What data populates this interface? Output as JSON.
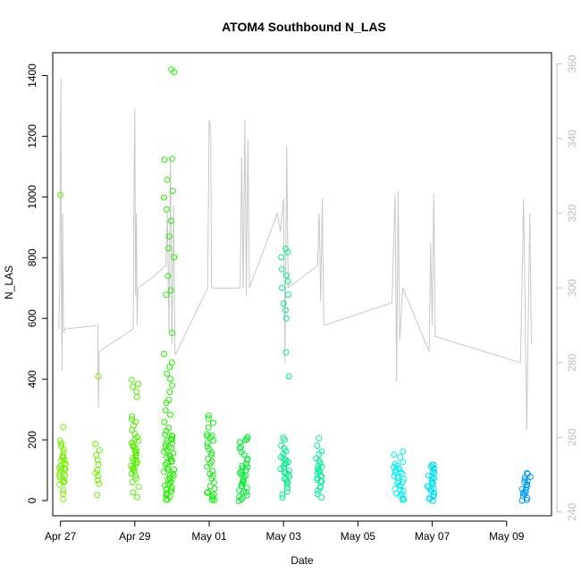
{
  "chart_data": {
    "type": "scatter",
    "title": "ATOM4 Southbound N_LAS",
    "xlabel": "Date",
    "ylabel": "N_LAS",
    "x_axis": {
      "type": "date",
      "range": [
        "2024-04-26T19:00",
        "2024-05-10T05:00"
      ],
      "ticks": [
        "2024-04-27",
        "2024-04-29",
        "2024-05-01",
        "2024-05-03",
        "2024-05-05",
        "2024-05-07",
        "2024-05-09"
      ],
      "tick_labels": [
        "Apr 27",
        "Apr 29",
        "May 01",
        "May 03",
        "May 05",
        "May 07",
        "May 09"
      ]
    },
    "y_axis": {
      "range": [
        -50,
        1475
      ],
      "ticks": [
        0,
        200,
        400,
        600,
        800,
        1000,
        1200,
        1400
      ]
    },
    "y2_axis": {
      "range": [
        239,
        363
      ],
      "ticks": [
        240,
        260,
        280,
        300,
        320,
        340,
        360
      ],
      "color": "#bebebe"
    },
    "grid": false,
    "legend": "none",
    "point_clusters": [
      {
        "center": "2024-04-27T01:00",
        "spread_hours": 2.5,
        "color": "#77ee00",
        "y": [
          5,
          20,
          32,
          50,
          58,
          62,
          65,
          70,
          75,
          80,
          85,
          90,
          95,
          100,
          105,
          108,
          110,
          115,
          120,
          125,
          130,
          135,
          140,
          145,
          150,
          160,
          170,
          180,
          185,
          190,
          200,
          245,
          1008
        ]
      },
      {
        "center": "2024-04-28T00:00",
        "spread_hours": 1.5,
        "color": "#6dee00",
        "y": [
          20,
          55,
          65,
          80,
          90,
          100,
          120,
          130,
          150,
          165,
          185,
          410
        ]
      },
      {
        "center": "2024-04-29T00:00",
        "spread_hours": 2.5,
        "color": "#55ee00",
        "y": [
          10,
          25,
          45,
          60,
          70,
          80,
          85,
          90,
          95,
          100,
          105,
          110,
          115,
          120,
          125,
          130,
          135,
          140,
          145,
          150,
          155,
          160,
          165,
          170,
          175,
          180,
          185,
          190,
          195,
          200,
          210,
          220,
          230,
          250,
          260,
          270,
          280,
          340,
          360,
          375,
          385,
          395
        ]
      },
      {
        "center": "2024-04-29T22:00",
        "spread_hours": 3.5,
        "color": "#22ee00",
        "y": [
          0,
          5,
          10,
          15,
          20,
          25,
          30,
          35,
          40,
          45,
          50,
          55,
          60,
          65,
          70,
          75,
          80,
          85,
          90,
          95,
          100,
          105,
          110,
          115,
          120,
          125,
          130,
          135,
          140,
          145,
          150,
          155,
          160,
          165,
          170,
          175,
          180,
          185,
          190,
          195,
          200,
          205,
          210,
          215,
          220,
          230,
          240,
          260,
          280,
          300,
          320,
          330,
          360,
          380,
          400,
          420,
          440,
          455,
          480,
          550,
          680,
          690,
          740,
          800,
          830,
          870,
          920,
          960,
          1000,
          1020,
          1060,
          1120,
          1125,
          1410,
          1418
        ]
      },
      {
        "center": "2024-05-01T01:00",
        "spread_hours": 2.5,
        "color": "#11ee11",
        "y": [
          0,
          5,
          10,
          15,
          20,
          25,
          30,
          40,
          50,
          60,
          70,
          80,
          90,
          100,
          110,
          120,
          130,
          140,
          150,
          160,
          170,
          180,
          190,
          200,
          205,
          210,
          215,
          220,
          240,
          255,
          270,
          278
        ]
      },
      {
        "center": "2024-05-01T22:00",
        "spread_hours": 3,
        "color": "#00ee33",
        "y": [
          0,
          5,
          10,
          15,
          20,
          25,
          30,
          35,
          40,
          45,
          50,
          55,
          60,
          65,
          70,
          75,
          80,
          85,
          90,
          95,
          100,
          105,
          110,
          115,
          120,
          130,
          140,
          150,
          160,
          170,
          180,
          190,
          195,
          200,
          205,
          210
        ]
      },
      {
        "center": "2024-05-03T01:00",
        "spread_hours": 3,
        "color": "#00ee88",
        "y": [
          10,
          20,
          30,
          40,
          50,
          60,
          65,
          70,
          75,
          80,
          85,
          90,
          95,
          100,
          105,
          110,
          115,
          120,
          125,
          130,
          135,
          140,
          145,
          150,
          160,
          170,
          180,
          200,
          205,
          410,
          490,
          600,
          630,
          650,
          680,
          700,
          720,
          740,
          760,
          800,
          820,
          830
        ]
      },
      {
        "center": "2024-05-03T23:00",
        "spread_hours": 2,
        "color": "#00ee99",
        "y": [
          10,
          20,
          30,
          40,
          50,
          60,
          65,
          70,
          75,
          80,
          85,
          90,
          95,
          100,
          105,
          110,
          115,
          120,
          130,
          140,
          150,
          160,
          180,
          205
        ]
      },
      {
        "center": "2024-05-06T02:00",
        "spread_hours": 3.5,
        "color": "#00eeee",
        "y": [
          0,
          5,
          10,
          15,
          20,
          25,
          30,
          35,
          40,
          45,
          50,
          55,
          60,
          65,
          70,
          75,
          80,
          85,
          90,
          95,
          100,
          105,
          110,
          115,
          120,
          130,
          140,
          150,
          160
        ]
      },
      {
        "center": "2024-05-06T23:00",
        "spread_hours": 2.5,
        "color": "#00ddee",
        "y": [
          0,
          5,
          10,
          15,
          20,
          25,
          30,
          35,
          40,
          45,
          50,
          55,
          60,
          65,
          70,
          75,
          80,
          85,
          90,
          95,
          100,
          105,
          110,
          115,
          120
        ]
      },
      {
        "center": "2024-05-09T13:00",
        "spread_hours": 3,
        "color": "#0099ee",
        "y": [
          0,
          5,
          10,
          15,
          20,
          25,
          30,
          35,
          40,
          45,
          50,
          55,
          60,
          65,
          70,
          75,
          80,
          85,
          90
        ]
      }
    ],
    "secondary_line": {
      "axis": "y2",
      "color": "#c8c8c8",
      "points": [
        [
          "2024-04-26T23:00",
          289
        ],
        [
          "2024-04-26T23:30",
          300
        ],
        [
          "2024-04-27T00:00",
          340
        ],
        [
          "2024-04-27T00:20",
          356
        ],
        [
          "2024-04-27T00:40",
          296
        ],
        [
          "2024-04-27T01:00",
          278
        ],
        [
          "2024-04-27T01:20",
          320
        ],
        [
          "2024-04-27T02:00",
          288
        ],
        [
          "2024-04-27T03:00",
          289
        ],
        [
          "2024-04-28T00:00",
          290
        ],
        [
          "2024-04-28T00:30",
          268
        ],
        [
          "2024-04-28T01:00",
          283
        ],
        [
          "2024-04-28T23:00",
          289
        ],
        [
          "2024-04-28T23:30",
          330
        ],
        [
          "2024-04-29T00:00",
          348
        ],
        [
          "2024-04-29T00:30",
          298
        ],
        [
          "2024-04-29T01:00",
          320
        ],
        [
          "2024-04-29T01:30",
          290
        ],
        [
          "2024-04-29T02:00",
          300
        ],
        [
          "2024-04-29T12:00",
          303
        ],
        [
          "2024-04-29T20:00",
          306
        ],
        [
          "2024-04-29T21:00",
          320
        ],
        [
          "2024-04-29T22:00",
          288
        ],
        [
          "2024-04-29T23:00",
          335
        ],
        [
          "2024-04-30T00:00",
          285
        ],
        [
          "2024-04-30T01:00",
          322
        ],
        [
          "2024-04-30T02:00",
          282
        ],
        [
          "2024-04-30T23:00",
          300
        ],
        [
          "2024-05-01T00:00",
          345
        ],
        [
          "2024-05-01T00:30",
          344
        ],
        [
          "2024-05-01T01:00",
          340
        ],
        [
          "2024-05-01T01:30",
          300
        ],
        [
          "2024-05-01T02:00",
          300
        ],
        [
          "2024-05-01T20:00",
          300
        ],
        [
          "2024-05-01T21:00",
          335
        ],
        [
          "2024-05-01T22:00",
          300
        ],
        [
          "2024-05-01T23:00",
          345
        ],
        [
          "2024-05-02T00:00",
          298
        ],
        [
          "2024-05-02T01:00",
          340
        ],
        [
          "2024-05-02T02:00",
          300
        ],
        [
          "2024-05-02T20:00",
          320
        ],
        [
          "2024-05-02T22:00",
          315
        ],
        [
          "2024-05-03T00:00",
          324
        ],
        [
          "2024-05-03T01:00",
          280
        ],
        [
          "2024-05-03T02:00",
          338
        ],
        [
          "2024-05-03T03:00",
          300
        ],
        [
          "2024-05-03T22:00",
          306
        ],
        [
          "2024-05-03T23:00",
          320
        ],
        [
          "2024-05-04T00:00",
          296
        ],
        [
          "2024-05-04T01:00",
          324
        ],
        [
          "2024-05-04T02:00",
          290
        ],
        [
          "2024-05-05T22:00",
          296
        ],
        [
          "2024-05-06T00:00",
          325
        ],
        [
          "2024-05-06T01:00",
          275
        ],
        [
          "2024-05-06T02:00",
          326
        ],
        [
          "2024-05-06T03:00",
          286
        ],
        [
          "2024-05-06T05:00",
          300
        ],
        [
          "2024-05-06T22:00",
          283
        ],
        [
          "2024-05-06T23:00",
          312
        ],
        [
          "2024-05-07T00:00",
          290
        ],
        [
          "2024-05-07T01:00",
          325
        ],
        [
          "2024-05-07T02:00",
          287
        ],
        [
          "2024-05-09T09:00",
          280
        ],
        [
          "2024-05-09T11:00",
          324
        ],
        [
          "2024-05-09T13:00",
          262
        ],
        [
          "2024-05-09T15:00",
          320
        ],
        [
          "2024-05-09T16:00",
          285
        ]
      ]
    }
  }
}
